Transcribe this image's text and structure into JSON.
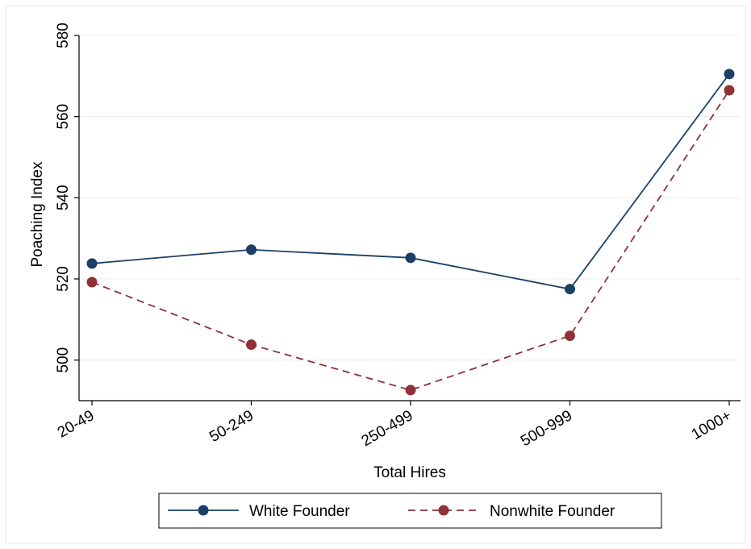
{
  "chart_data": {
    "type": "line",
    "categories": [
      "20-49",
      "50-249",
      "250-499",
      "500-999",
      "1000+"
    ],
    "series": [
      {
        "name": "White Founder",
        "values": [
          523.8,
          527.2,
          525.2,
          517.5,
          570.5
        ],
        "color": "#1b3f66",
        "dash": "solid"
      },
      {
        "name": "Nonwhite Founder",
        "values": [
          519.2,
          503.8,
          492.6,
          506.0,
          566.5
        ],
        "color": "#8e3238",
        "dash": "dashed"
      }
    ],
    "xlabel": "Total Hires",
    "ylabel": "Poaching Index",
    "ylim": [
      490,
      580
    ],
    "yticks": [
      500,
      520,
      540,
      560,
      580
    ],
    "grid": true,
    "legend_position": "bottom"
  }
}
